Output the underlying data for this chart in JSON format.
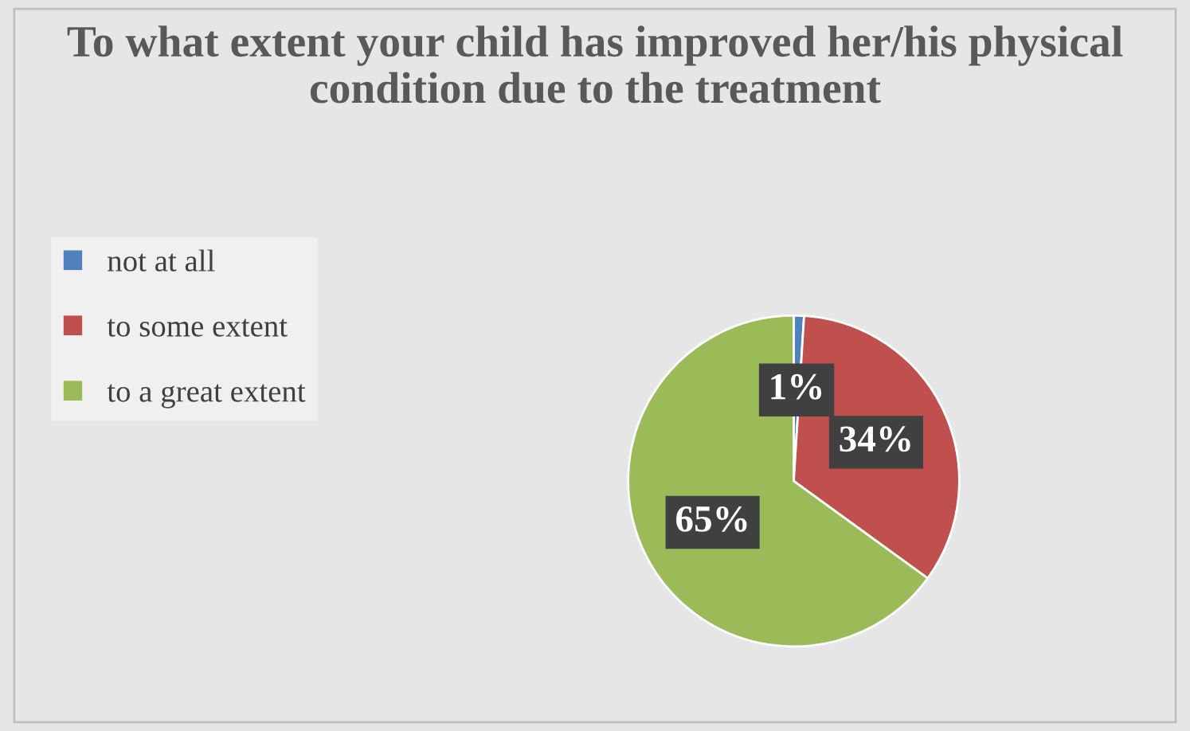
{
  "chart_data": {
    "type": "pie",
    "title": "To what extent your child has improved her/his physical condition due to the treatment",
    "categories": [
      "not at all",
      "to some extent",
      "to a great extent"
    ],
    "values": [
      1,
      34,
      65
    ],
    "colors": [
      "#4f81bd",
      "#c0504d",
      "#9bbb59"
    ],
    "value_labels": [
      "1%",
      "34%",
      "65%"
    ],
    "legend": "left"
  }
}
